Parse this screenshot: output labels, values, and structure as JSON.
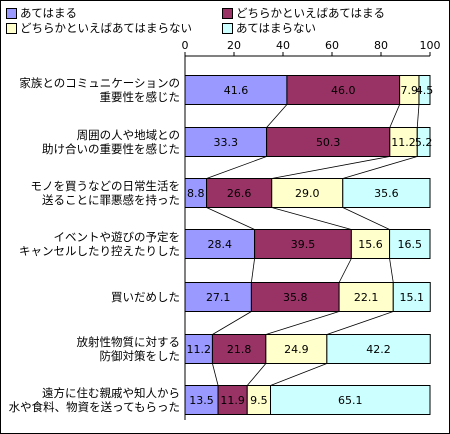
{
  "chart_data": {
    "type": "bar",
    "orientation": "horizontal",
    "stacked": true,
    "xlim": [
      0,
      100
    ],
    "xticks": [
      "0",
      "20",
      "40",
      "60",
      "80",
      "100"
    ],
    "legend_position": "top",
    "categories": [
      [
        "家族とのコミュニケーションの",
        "重要性を感じた"
      ],
      [
        "周囲の人や地域との",
        "助け合いの重要性を感じた"
      ],
      [
        "モノを買うなどの日常生活を",
        "送ることに罪悪感を持った"
      ],
      [
        "イベントや遊びの予定を",
        "キャンセルしたり控えたりした"
      ],
      [
        "買いだめした"
      ],
      [
        "放射性物質に対する",
        "防御対策をした"
      ],
      [
        "遠方に住む親戚や知人から",
        "水や食料、物資を送ってもらった"
      ]
    ],
    "series": [
      {
        "name": "あてはまる",
        "color": "#9999ff",
        "values": [
          41.6,
          33.3,
          8.8,
          28.4,
          27.1,
          11.2,
          13.5
        ],
        "labels": [
          "41.6",
          "33.3",
          "8.8",
          "28.4",
          "27.1",
          "11.2",
          "13.5"
        ]
      },
      {
        "name": "どちらかといえばあてはまる",
        "color": "#993366",
        "values": [
          46.0,
          50.3,
          26.6,
          39.5,
          35.8,
          21.8,
          11.9
        ],
        "labels": [
          "46.0",
          "50.3",
          "26.6",
          "39.5",
          "35.8",
          "21.8",
          "11.9"
        ]
      },
      {
        "name": "どちらかといえばあてはまらない",
        "color": "#ffffcc",
        "values": [
          7.9,
          11.2,
          29.0,
          15.6,
          22.1,
          24.9,
          9.5
        ],
        "labels": [
          "7.9",
          "11.2",
          "29.0",
          "15.6",
          "22.1",
          "24.9",
          "9.5"
        ]
      },
      {
        "name": "あてはまらない",
        "color": "#ccffff",
        "values": [
          4.5,
          5.2,
          35.6,
          16.5,
          15.1,
          42.2,
          65.1
        ],
        "labels": [
          "4.5",
          "5.2",
          "35.6",
          "16.5",
          "15.1",
          "42.2",
          "65.1"
        ]
      }
    ]
  }
}
